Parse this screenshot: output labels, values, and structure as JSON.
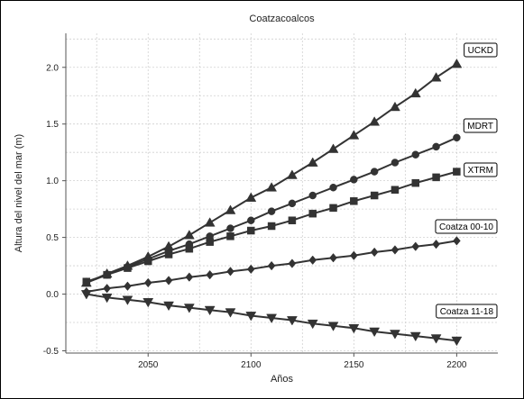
{
  "chart_data": {
    "type": "line",
    "title": "Coatzacoalcos",
    "xlabel": "Años",
    "ylabel": "Altura del nivel del mar (m)",
    "xlim": [
      2010,
      2220
    ],
    "ylim": [
      -0.52,
      2.3
    ],
    "xticks": [
      2050,
      2100,
      2150,
      2200
    ],
    "yticks": [
      -0.5,
      0.0,
      0.5,
      1.0,
      1.5,
      2.0
    ],
    "ytick_labels": [
      "-0.5",
      "0.0",
      "0.5",
      "1.0",
      "1.5",
      "2.0"
    ],
    "grid": true,
    "x": [
      2020,
      2030,
      2040,
      2050,
      2060,
      2070,
      2080,
      2090,
      2100,
      2110,
      2120,
      2130,
      2140,
      2150,
      2160,
      2170,
      2180,
      2190,
      2200
    ],
    "series": [
      {
        "name": "UCKD",
        "marker": "triangle-up",
        "values": [
          0.1,
          0.18,
          0.25,
          0.33,
          0.42,
          0.52,
          0.63,
          0.74,
          0.85,
          0.94,
          1.05,
          1.16,
          1.28,
          1.4,
          1.52,
          1.65,
          1.77,
          1.91,
          2.03
        ]
      },
      {
        "name": "MDRT",
        "marker": "circle",
        "values": [
          0.1,
          0.17,
          0.24,
          0.31,
          0.38,
          0.44,
          0.51,
          0.58,
          0.65,
          0.73,
          0.8,
          0.87,
          0.94,
          1.01,
          1.08,
          1.16,
          1.23,
          1.3,
          1.38
        ]
      },
      {
        "name": "XTRM",
        "marker": "square",
        "values": [
          0.11,
          0.17,
          0.23,
          0.29,
          0.35,
          0.4,
          0.46,
          0.51,
          0.56,
          0.6,
          0.65,
          0.71,
          0.76,
          0.82,
          0.87,
          0.92,
          0.98,
          1.03,
          1.08
        ]
      },
      {
        "name": "Coatza 00-10",
        "marker": "diamond",
        "values": [
          0.02,
          0.05,
          0.07,
          0.1,
          0.12,
          0.15,
          0.17,
          0.2,
          0.22,
          0.25,
          0.27,
          0.3,
          0.32,
          0.34,
          0.37,
          0.39,
          0.42,
          0.44,
          0.47
        ]
      },
      {
        "name": "Coatza 11-18",
        "marker": "triangle-down",
        "values": [
          0.0,
          -0.03,
          -0.05,
          -0.07,
          -0.1,
          -0.12,
          -0.14,
          -0.16,
          -0.19,
          -0.21,
          -0.23,
          -0.26,
          -0.28,
          -0.3,
          -0.33,
          -0.35,
          -0.37,
          -0.39,
          -0.41
        ]
      }
    ],
    "colors": {
      "line": "#333333",
      "grid": "#d0d0d0",
      "background": "#ffffff"
    }
  }
}
